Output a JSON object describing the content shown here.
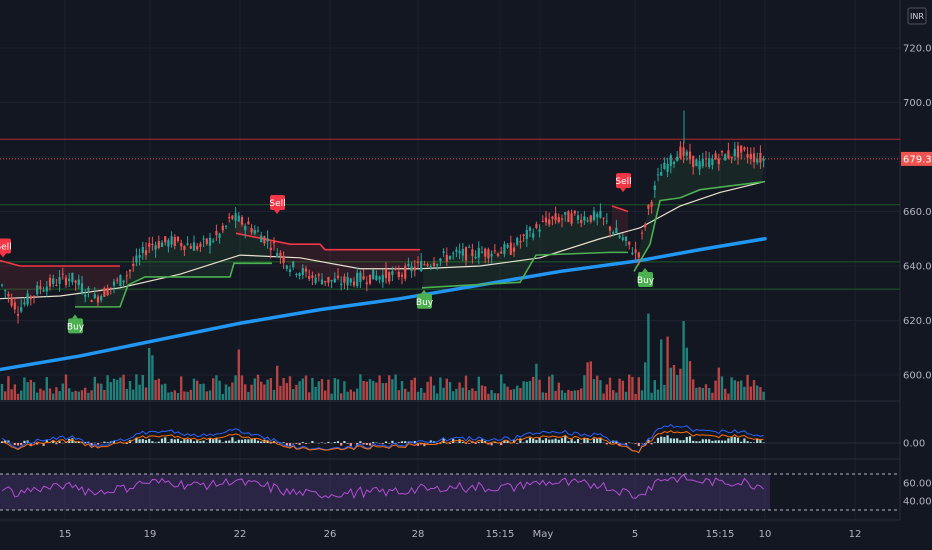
{
  "currency": "INR",
  "colors": {
    "background": "#131722",
    "grid": "#1e2230",
    "up": "#26a69a",
    "down": "#ef5350",
    "sma200": "#2196f3",
    "sma50": "#e8e2cf",
    "stop_green": "#4caf50",
    "stop_red": "#f23645",
    "rsi": "#b44ed6"
  },
  "chart_data": {
    "type": "candlestick",
    "price_axis": {
      "min": 595,
      "max": 725,
      "ticks": [
        "720.00",
        "700.00",
        "680.00",
        "660.00",
        "640.00",
        "620.00",
        "600.00"
      ]
    },
    "current_price": "679.30",
    "horizontal_levels": [
      {
        "value": 686.5,
        "color": "#b22833"
      },
      {
        "value": 641.5,
        "color": "#1e5a2a"
      },
      {
        "value": 631.5,
        "color": "#1e5a2a"
      },
      {
        "value": 662.5,
        "color": "#1e5a2a"
      }
    ],
    "x_labels": [
      "15",
      "19",
      "22",
      "26",
      "28",
      "15:15",
      "May",
      "5",
      "15:15",
      "10",
      "12"
    ],
    "anchors": [
      [
        0,
        634
      ],
      [
        18,
        624
      ],
      [
        40,
        632
      ],
      [
        70,
        636
      ],
      [
        95,
        628
      ],
      [
        125,
        636
      ],
      [
        150,
        648
      ],
      [
        175,
        649
      ],
      [
        200,
        647
      ],
      [
        222,
        652
      ],
      [
        232,
        658
      ],
      [
        252,
        654
      ],
      [
        272,
        648
      ],
      [
        290,
        640
      ],
      [
        312,
        636
      ],
      [
        340,
        634
      ],
      [
        370,
        636
      ],
      [
        400,
        637
      ],
      [
        425,
        641
      ],
      [
        452,
        644
      ],
      [
        480,
        645
      ],
      [
        510,
        646
      ],
      [
        530,
        652
      ],
      [
        550,
        657
      ],
      [
        575,
        658
      ],
      [
        600,
        658
      ],
      [
        622,
        650
      ],
      [
        638,
        644
      ],
      [
        648,
        660
      ],
      [
        660,
        674
      ],
      [
        680,
        682
      ],
      [
        700,
        677
      ],
      [
        720,
        680
      ],
      [
        740,
        682
      ],
      [
        755,
        680
      ],
      [
        765,
        679
      ]
    ],
    "sma200": [
      [
        0,
        602
      ],
      [
        80,
        607
      ],
      [
        160,
        613
      ],
      [
        240,
        619
      ],
      [
        320,
        624
      ],
      [
        400,
        628
      ],
      [
        480,
        633
      ],
      [
        560,
        638
      ],
      [
        640,
        642
      ],
      [
        700,
        646
      ],
      [
        765,
        650
      ]
    ],
    "sma50": [
      [
        0,
        628
      ],
      [
        60,
        629
      ],
      [
        120,
        632
      ],
      [
        180,
        637
      ],
      [
        240,
        644
      ],
      [
        300,
        643
      ],
      [
        360,
        639
      ],
      [
        420,
        639
      ],
      [
        480,
        640
      ],
      [
        540,
        643
      ],
      [
        600,
        650
      ],
      [
        640,
        654
      ],
      [
        680,
        662
      ],
      [
        720,
        667
      ],
      [
        765,
        671
      ]
    ],
    "stop_segments": [
      {
        "color": "#f23645",
        "points": [
          [
            0,
            642
          ],
          [
            20,
            640
          ],
          [
            120,
            640
          ]
        ]
      },
      {
        "color": "#4caf50",
        "points": [
          [
            75,
            625
          ],
          [
            120,
            625
          ],
          [
            128,
            633
          ],
          [
            145,
            636
          ],
          [
            230,
            636
          ],
          [
            234,
            641
          ],
          [
            272,
            641
          ]
        ]
      },
      {
        "color": "#f23645",
        "points": [
          [
            236,
            652
          ],
          [
            290,
            648
          ],
          [
            320,
            648
          ],
          [
            325,
            646
          ],
          [
            420,
            646
          ]
        ]
      },
      {
        "color": "#4caf50",
        "points": [
          [
            422,
            632
          ],
          [
            470,
            633
          ],
          [
            520,
            634
          ],
          [
            536,
            644
          ],
          [
            610,
            645
          ],
          [
            628,
            645
          ]
        ]
      },
      {
        "color": "#f23645",
        "points": [
          [
            612,
            662
          ],
          [
            628,
            660
          ]
        ]
      },
      {
        "color": "#4caf50",
        "points": [
          [
            634,
            638
          ],
          [
            650,
            648
          ],
          [
            660,
            664
          ],
          [
            680,
            665
          ],
          [
            700,
            668
          ],
          [
            765,
            671
          ]
        ]
      }
    ],
    "signals": [
      {
        "label": "Sell",
        "x": 3,
        "price": 642
      },
      {
        "label": "Buy",
        "x": 75,
        "price": 623
      },
      {
        "label": "Sell",
        "x": 277,
        "price": 658
      },
      {
        "label": "Buy",
        "x": 424,
        "price": 632
      },
      {
        "label": "Sell",
        "x": 623,
        "price": 666
      },
      {
        "label": "Buy",
        "x": 645,
        "price": 640
      }
    ],
    "volume_spikes": [
      [
        150,
        2.6
      ],
      [
        238,
        2.5
      ],
      [
        275,
        1.6
      ],
      [
        535,
        2.8
      ],
      [
        590,
        1.5
      ],
      [
        648,
        4.0
      ],
      [
        655,
        3.0
      ],
      [
        662,
        2.5
      ],
      [
        668,
        3.6
      ],
      [
        675,
        2.2
      ],
      [
        682,
        3.2
      ],
      [
        688,
        2.6
      ],
      [
        720,
        1.6
      ]
    ],
    "macd": {
      "ticks": [
        "0.00"
      ]
    },
    "rsi": {
      "ticks": [
        "60.00",
        "40.00"
      ],
      "upper": 70,
      "lower": 30
    }
  }
}
